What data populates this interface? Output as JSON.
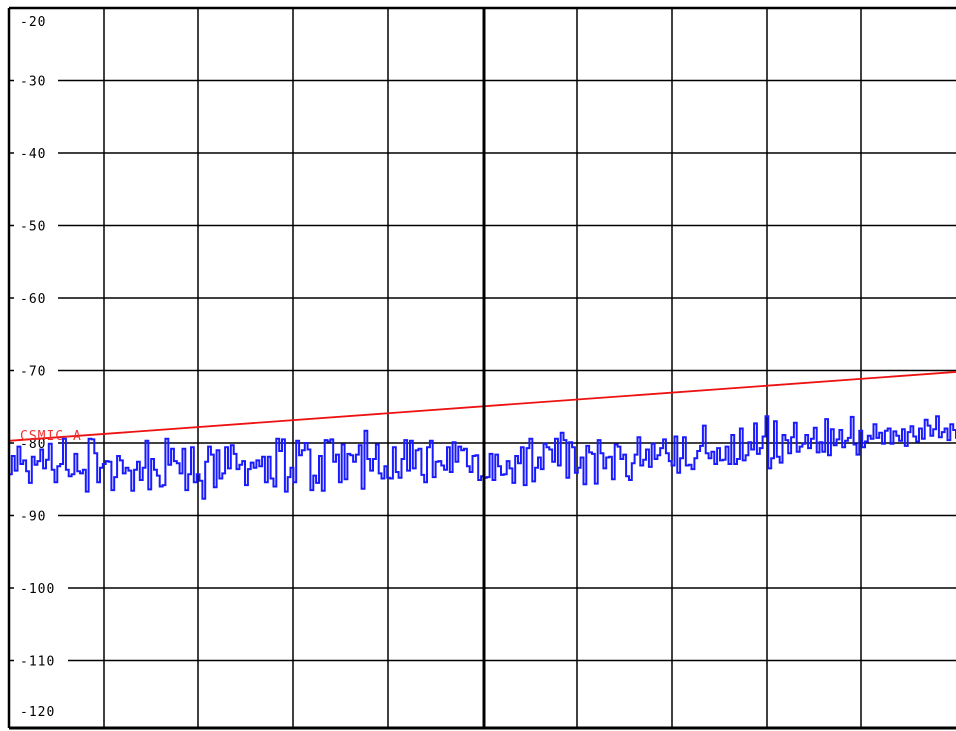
{
  "chart_data": {
    "type": "line",
    "title": "",
    "xlabel": "",
    "ylabel": "",
    "ylim": [
      -122,
      -20
    ],
    "y_ticks": [
      -20,
      -30,
      -40,
      -50,
      -60,
      -70,
      -80,
      -90,
      -100,
      -110,
      -120
    ],
    "y_tick_labels": [
      "-20",
      "-30",
      "-40",
      "-50",
      "-60",
      "-70",
      "-80",
      "-90",
      "-100",
      "-110",
      "-120"
    ],
    "x_divisions": 10,
    "grid": true,
    "colors": {
      "trace": "#1a1aff",
      "limit": "#ee1111",
      "limit_label": "#ee3333",
      "grid": "#000000"
    },
    "limit_line": {
      "label": "CSMIC-A",
      "start": -79.7,
      "end": -70.2
    },
    "series": [
      {
        "values": [
          -84.3,
          -81.8,
          -83.8,
          -80.5,
          -82.9,
          -82.4,
          -83.9,
          -85.5,
          -81.9,
          -83.0,
          -82.5,
          -80.9,
          -83.5,
          -82.3,
          -80.1,
          -83.7,
          -85.4,
          -83.2,
          -82.9,
          -79.4,
          -83.7,
          -84.6,
          -84.3,
          -81.5,
          -83.9,
          -84.2,
          -83.7,
          -86.7,
          -79.4,
          -79.5,
          -81.4,
          -85.4,
          -83.4,
          -82.9,
          -82.5,
          -82.6,
          -86.5,
          -84.7,
          -81.8,
          -82.4,
          -84.2,
          -83.4,
          -83.8,
          -86.6,
          -83.7,
          -82.6,
          -85.1,
          -83.4,
          -79.7,
          -86.4,
          -82.2,
          -83.7,
          -84.5,
          -86.0,
          -85.8,
          -79.4,
          -83.0,
          -80.8,
          -82.5,
          -82.8,
          -84.2,
          -80.8,
          -86.5,
          -84.3,
          -80.6,
          -85.4,
          -84.3,
          -85.2,
          -87.7,
          -82.6,
          -80.5,
          -81.6,
          -86.1,
          -81.0,
          -84.9,
          -84.2,
          -80.6,
          -83.5,
          -80.3,
          -81.5,
          -83.6,
          -83.0,
          -82.5,
          -85.8,
          -83.6,
          -82.7,
          -83.4,
          -82.4,
          -83.2,
          -81.9,
          -85.4,
          -81.9,
          -84.9,
          -86.0,
          -79.4,
          -81.1,
          -79.5,
          -86.7,
          -84.7,
          -83.4,
          -85.4,
          -79.7,
          -81.7,
          -81.0,
          -80.0,
          -80.9,
          -86.5,
          -84.5,
          -85.5,
          -81.8,
          -86.6,
          -79.6,
          -79.8,
          -79.5,
          -82.6,
          -81.6,
          -85.4,
          -80.2,
          -85.0,
          -81.5,
          -81.7,
          -82.6,
          -81.6,
          -80.3,
          -86.3,
          -78.3,
          -82.2,
          -83.8,
          -82.2,
          -80.2,
          -84.2,
          -84.9,
          -83.2,
          -84.8,
          -84.9,
          -80.6,
          -84.0,
          -84.8,
          -82.2,
          -79.6,
          -83.8,
          -79.7,
          -83.5,
          -81.0,
          -80.8,
          -84.4,
          -85.4,
          -80.6,
          -79.7,
          -84.7,
          -82.6,
          -82.5,
          -83.1,
          -83.7,
          -80.6,
          -84.0,
          -79.9,
          -82.6,
          -80.5,
          -81.0,
          -80.8,
          -83.2,
          -84.0,
          -81.8,
          -81.7,
          -85.1,
          -84.6,
          -84.8,
          -84.7,
          -81.5,
          -85.1,
          -81.6,
          -83.2,
          -84.4,
          -84.3,
          -82.5,
          -83.5,
          -85.5,
          -81.8,
          -82.8,
          -80.6,
          -85.8,
          -80.7,
          -79.4,
          -85.3,
          -83.4,
          -82.0,
          -83.6,
          -80.1,
          -80.6,
          -80.9,
          -82.6,
          -79.4,
          -83.1,
          -78.6,
          -79.6,
          -84.8,
          -79.9,
          -80.6,
          -84.1,
          -83.4,
          -82.0,
          -85.7,
          -80.4,
          -81.3,
          -81.5,
          -85.6,
          -79.6,
          -81.4,
          -83.5,
          -82.0,
          -81.9,
          -85.0,
          -80.2,
          -80.5,
          -82.2,
          -81.6,
          -84.6,
          -85.1,
          -82.8,
          -81.6,
          -79.2,
          -83.1,
          -82.3,
          -80.9,
          -83.3,
          -80.1,
          -82.2,
          -81.7,
          -80.7,
          -79.5,
          -81.4,
          -82.5,
          -83.1,
          -79.1,
          -84.1,
          -82.1,
          -79.2,
          -83.1,
          -83.0,
          -83.6,
          -82.1,
          -81.1,
          -80.4,
          -77.6,
          -81.4,
          -82.1,
          -81.2,
          -82.9,
          -80.7,
          -82.4,
          -82.3,
          -80.5,
          -82.9,
          -78.9,
          -82.9,
          -82.2,
          -78.0,
          -82.4,
          -81.7,
          -79.9,
          -80.9,
          -77.3,
          -81.5,
          -80.7,
          -79.1,
          -76.3,
          -83.5,
          -82.1,
          -77.0,
          -81.9,
          -82.7,
          -78.9,
          -79.6,
          -81.4,
          -79.2,
          -77.2,
          -81.2,
          -80.5,
          -80.1,
          -78.9,
          -80.7,
          -79.4,
          -77.9,
          -81.3,
          -79.9,
          -81.2,
          -76.7,
          -81.7,
          -78.1,
          -80.3,
          -79.5,
          -78.2,
          -80.6,
          -79.7,
          -79.3,
          -76.4,
          -80.2,
          -81.6,
          -78.3,
          -80.6,
          -79.8,
          -79.0,
          -79.4,
          -77.4,
          -79.3,
          -78.6,
          -80.1,
          -78.3,
          -78.0,
          -80.1,
          -78.4,
          -79.0,
          -79.7,
          -78.1,
          -80.4,
          -78.5,
          -77.7,
          -79.1,
          -79.8,
          -78.0,
          -79.4,
          -76.8,
          -77.6,
          -79.0,
          -78.1,
          -76.3,
          -79.2,
          -78.5,
          -78.0,
          -79.6,
          -77.4,
          -78.2,
          -79.4
        ]
      }
    ]
  }
}
